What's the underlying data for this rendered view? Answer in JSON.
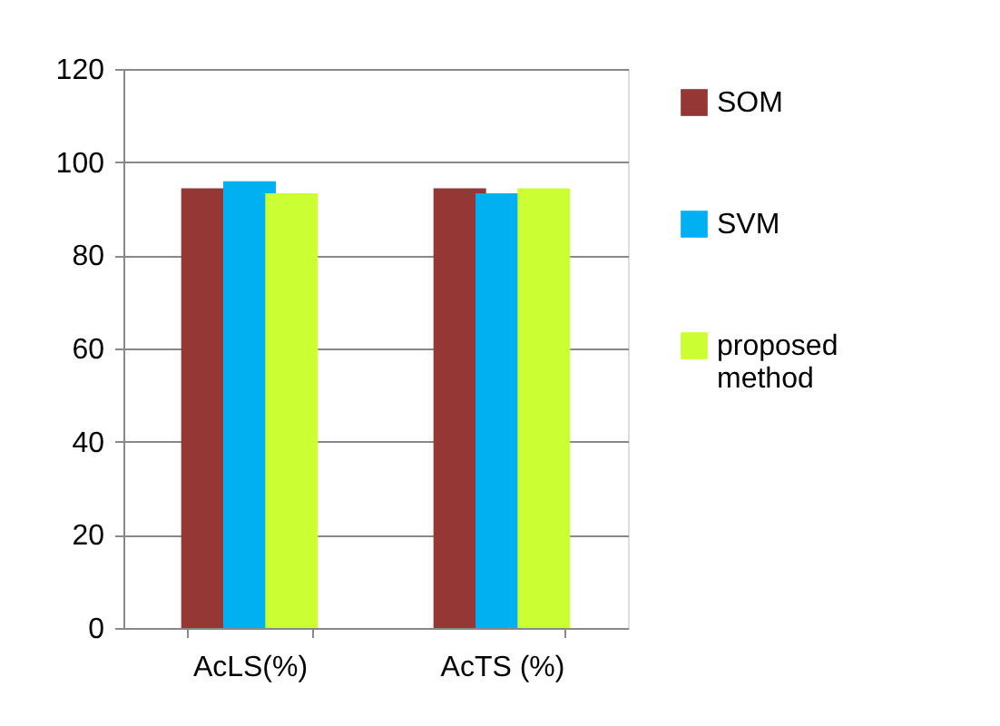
{
  "chart_data": {
    "type": "bar",
    "categories": [
      "AcLS(%)",
      "AcTS (%)"
    ],
    "series": [
      {
        "name": "SOM",
        "color": "#953735",
        "values": [
          94.4,
          94.4
        ]
      },
      {
        "name": "SVM",
        "color": "#00b0f0",
        "values": [
          95.9,
          93.3
        ]
      },
      {
        "name": "proposed method",
        "color": "#ccff33",
        "values": [
          93.3,
          94.4
        ]
      }
    ],
    "ylim": [
      0,
      120
    ],
    "yticks": [
      0,
      20,
      40,
      60,
      80,
      100,
      120
    ],
    "grid": "y",
    "legend": "right"
  }
}
